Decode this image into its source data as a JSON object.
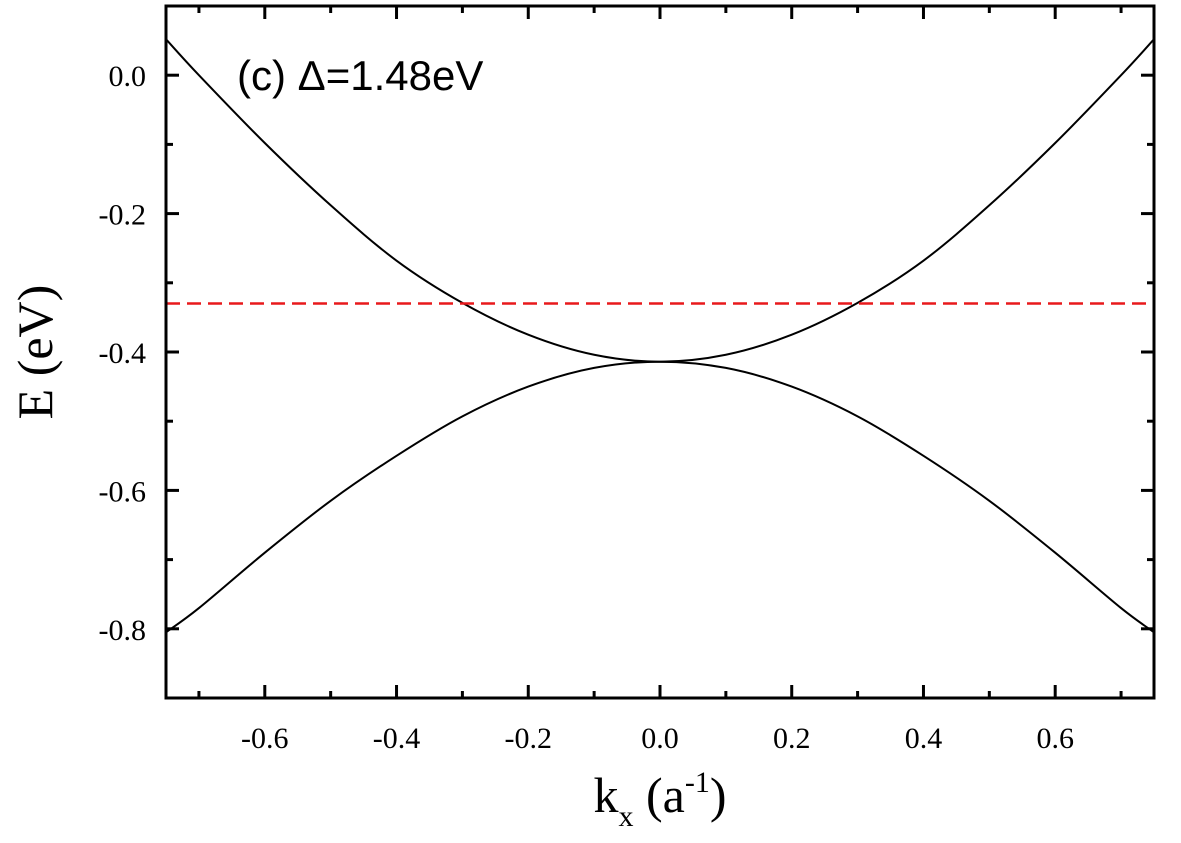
{
  "chart_data": {
    "type": "line",
    "title": "",
    "annotation": "(c) Δ=1.48eV",
    "xlabel": {
      "main": "k",
      "sub": "x",
      "unit_open": " (a",
      "sup": "-1",
      "unit_close": ")"
    },
    "ylabel": "E (eV)",
    "xlim": [
      -0.75,
      0.75
    ],
    "ylim": [
      -0.9,
      0.1
    ],
    "xticks": [
      -0.6,
      -0.4,
      -0.2,
      0.0,
      0.2,
      0.4,
      0.6
    ],
    "xtick_labels": [
      "-0.6",
      "-0.4",
      "-0.2",
      "0.0",
      "0.2",
      "0.4",
      "0.6"
    ],
    "yticks": [
      0.0,
      -0.2,
      -0.4,
      -0.6,
      -0.8
    ],
    "ytick_labels": [
      "0.0",
      "-0.2",
      "-0.4",
      "-0.6",
      "-0.8"
    ],
    "grid": false,
    "legend": "none",
    "series": [
      {
        "color": "#000000",
        "style": "solid",
        "x": [
          -0.75,
          -0.7,
          -0.6,
          -0.5,
          -0.4,
          -0.3,
          -0.2,
          -0.1,
          0.0,
          0.1,
          0.2,
          0.3,
          0.4,
          0.5,
          0.6,
          0.7,
          0.75
        ],
        "y": [
          0.052,
          0.0,
          -0.098,
          -0.188,
          -0.268,
          -0.329,
          -0.375,
          -0.404,
          -0.414,
          -0.404,
          -0.375,
          -0.329,
          -0.268,
          -0.188,
          -0.098,
          0.0,
          0.052
        ]
      },
      {
        "color": "#000000",
        "style": "solid",
        "x": [
          -0.75,
          -0.7,
          -0.6,
          -0.5,
          -0.4,
          -0.3,
          -0.2,
          -0.1,
          0.0,
          0.1,
          0.2,
          0.3,
          0.4,
          0.5,
          0.6,
          0.7,
          0.75
        ],
        "y": [
          -0.805,
          -0.77,
          -0.69,
          -0.615,
          -0.55,
          -0.493,
          -0.45,
          -0.423,
          -0.414,
          -0.423,
          -0.45,
          -0.493,
          -0.55,
          -0.615,
          -0.69,
          -0.77,
          -0.805
        ]
      },
      {
        "color": "#e8191c",
        "style": "dashed",
        "x": [
          -0.75,
          0.75
        ],
        "y": [
          -0.33,
          -0.33
        ]
      }
    ]
  }
}
